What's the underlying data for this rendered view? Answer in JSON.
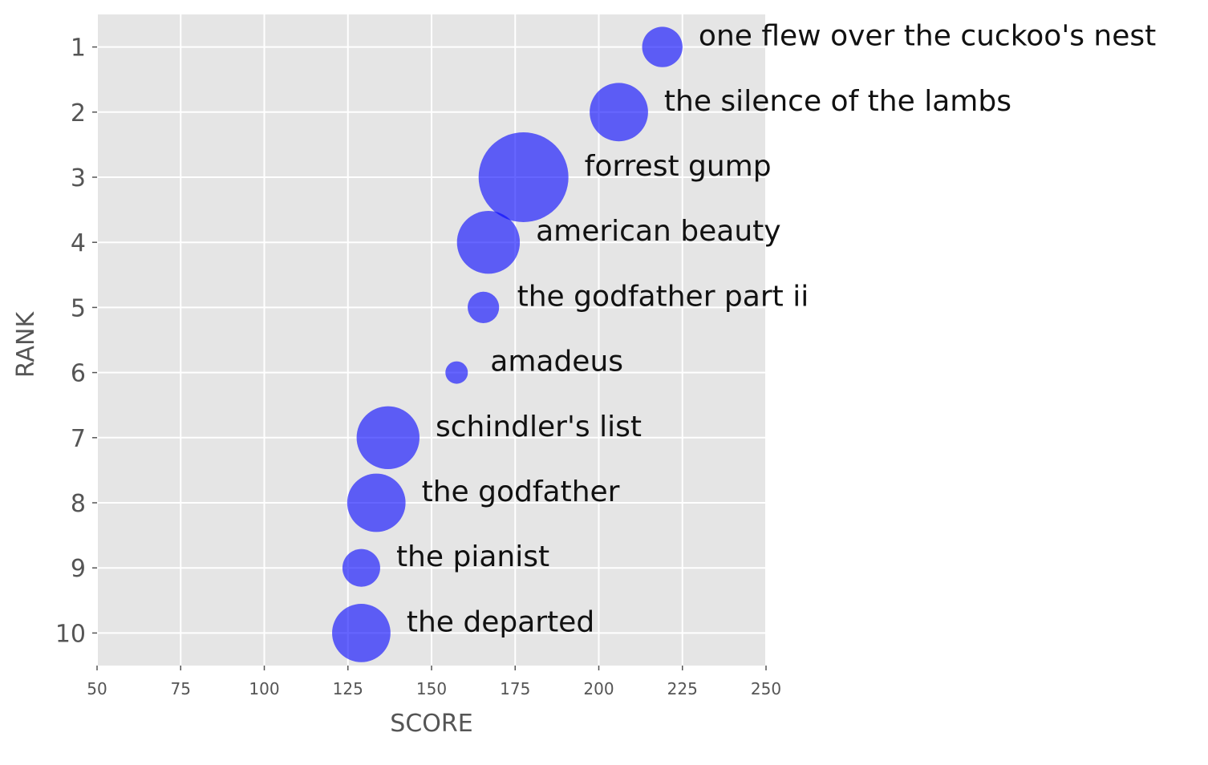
{
  "chart_data": {
    "type": "scatter",
    "title": "",
    "xlabel": "SCORE",
    "ylabel": "RANK",
    "xlim": [
      50,
      250
    ],
    "ylim": [
      10.5,
      0.5
    ],
    "x_ticks": [
      50,
      75,
      100,
      125,
      150,
      175,
      200,
      225,
      250
    ],
    "y_ticks": [
      1,
      2,
      3,
      4,
      5,
      6,
      7,
      8,
      9,
      10
    ],
    "y_inverted": true,
    "grid": true,
    "legend": false,
    "style": "ggplot",
    "background_color": "#e5e5e5",
    "grid_color": "#ffffff",
    "marker_color": "#0000ff",
    "marker_alpha": 0.6,
    "points": [
      {
        "label": "one flew over the cuckoo's nest",
        "x": 219,
        "y": 1,
        "size": 0.45
      },
      {
        "label": "the silence of the lambs",
        "x": 206,
        "y": 2,
        "size": 0.65
      },
      {
        "label": "forrest gump",
        "x": 177.5,
        "y": 3,
        "size": 1.0
      },
      {
        "label": "american beauty",
        "x": 167,
        "y": 4,
        "size": 0.7
      },
      {
        "label": "the godfather part ii",
        "x": 165.5,
        "y": 5,
        "size": 0.35
      },
      {
        "label": "amadeus",
        "x": 157.5,
        "y": 6,
        "size": 0.25
      },
      {
        "label": "schindler's list",
        "x": 137,
        "y": 7,
        "size": 0.7
      },
      {
        "label": "the godfather",
        "x": 133.5,
        "y": 8,
        "size": 0.65
      },
      {
        "label": "the pianist",
        "x": 129,
        "y": 9,
        "size": 0.42
      },
      {
        "label": "the departed",
        "x": 129,
        "y": 10,
        "size": 0.65
      }
    ]
  }
}
